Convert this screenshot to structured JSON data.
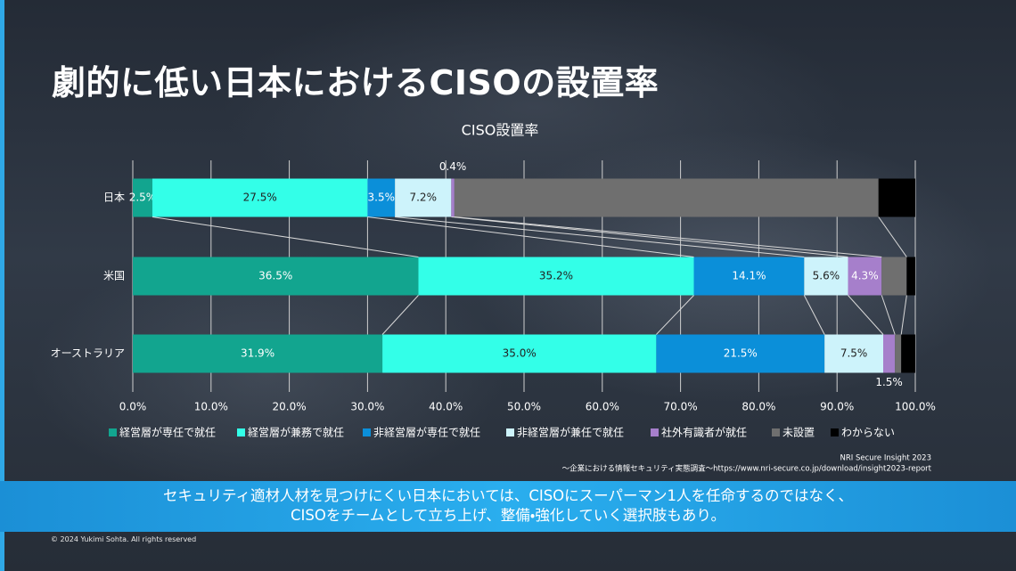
{
  "title": "劇的に低い日本におけるCISOの設置率",
  "chart_data": {
    "type": "stacked-bar-horizontal",
    "title": "CISO設置率",
    "categories": [
      "日本",
      "米国",
      "オーストラリア"
    ],
    "series": [
      {
        "name": "経営層が専任で就任",
        "color": "#12a58f",
        "values": [
          2.5,
          36.5,
          31.9
        ],
        "value_labels": [
          "2.5%",
          "36.5%",
          "31.9%"
        ]
      },
      {
        "name": "経営層が兼務で就任",
        "color": "#33ffe8",
        "values": [
          27.5,
          35.2,
          35.0
        ],
        "value_labels": [
          "27.5%",
          "35.2%",
          "35.0%"
        ]
      },
      {
        "name": "非経営層が専任で就任",
        "color": "#0b8fd9",
        "values": [
          3.5,
          14.1,
          21.5
        ],
        "value_labels": [
          "3.5%",
          "14.1%",
          "21.5%"
        ]
      },
      {
        "name": "非経営層が兼任で就任",
        "color": "#cdf3fb",
        "values": [
          7.2,
          5.6,
          7.5
        ],
        "value_labels": [
          "7.2%",
          "5.6%",
          "7.5%"
        ]
      },
      {
        "name": "社外有識者が就任",
        "color": "#a67fcb",
        "values": [
          0.4,
          4.3,
          1.5
        ],
        "value_labels": [
          "0.4%",
          "4.3%",
          "1.5%"
        ]
      },
      {
        "name": "未設置",
        "color": "#6f6f6f",
        "values": [
          54.2,
          3.2,
          0.8
        ],
        "value_labels": [
          null,
          null,
          null
        ]
      },
      {
        "name": "わからない",
        "color": "#000000",
        "values": [
          4.7,
          1.1,
          1.8
        ],
        "value_labels": [
          null,
          null,
          null
        ]
      }
    ],
    "xlim": [
      0,
      100
    ],
    "xticks": [
      {
        "value": 0,
        "label": "0.0%"
      },
      {
        "value": 10,
        "label": "10.0%"
      },
      {
        "value": 20,
        "label": "20.0%"
      },
      {
        "value": 30,
        "label": "30.0%"
      },
      {
        "value": 40,
        "label": "40.0%"
      },
      {
        "value": 50,
        "label": "50.0%"
      },
      {
        "value": 60,
        "label": "60.0%"
      },
      {
        "value": 70,
        "label": "70.0%"
      },
      {
        "value": 80,
        "label": "80.0%"
      },
      {
        "value": 90,
        "label": "90.0%"
      },
      {
        "value": 100,
        "label": "100.0%"
      }
    ],
    "grid": true,
    "legend": "bottom"
  },
  "source": [
    "NRI Secure Insight 2023",
    "～企業における情報セキュリティ実態調査～https://www.nri-secure.co.jp/download/insight2023-report"
  ],
  "message": [
    "セキュリティ適材人材を見つけにくい日本においては、CISOにスーパーマン1人を任命するのではなく、",
    "CISOをチームとして立ち上げ、整備・強化していく選択肢もあり。"
  ],
  "copyright": "© 2024 Yukimi Sohta. All rights reserved"
}
